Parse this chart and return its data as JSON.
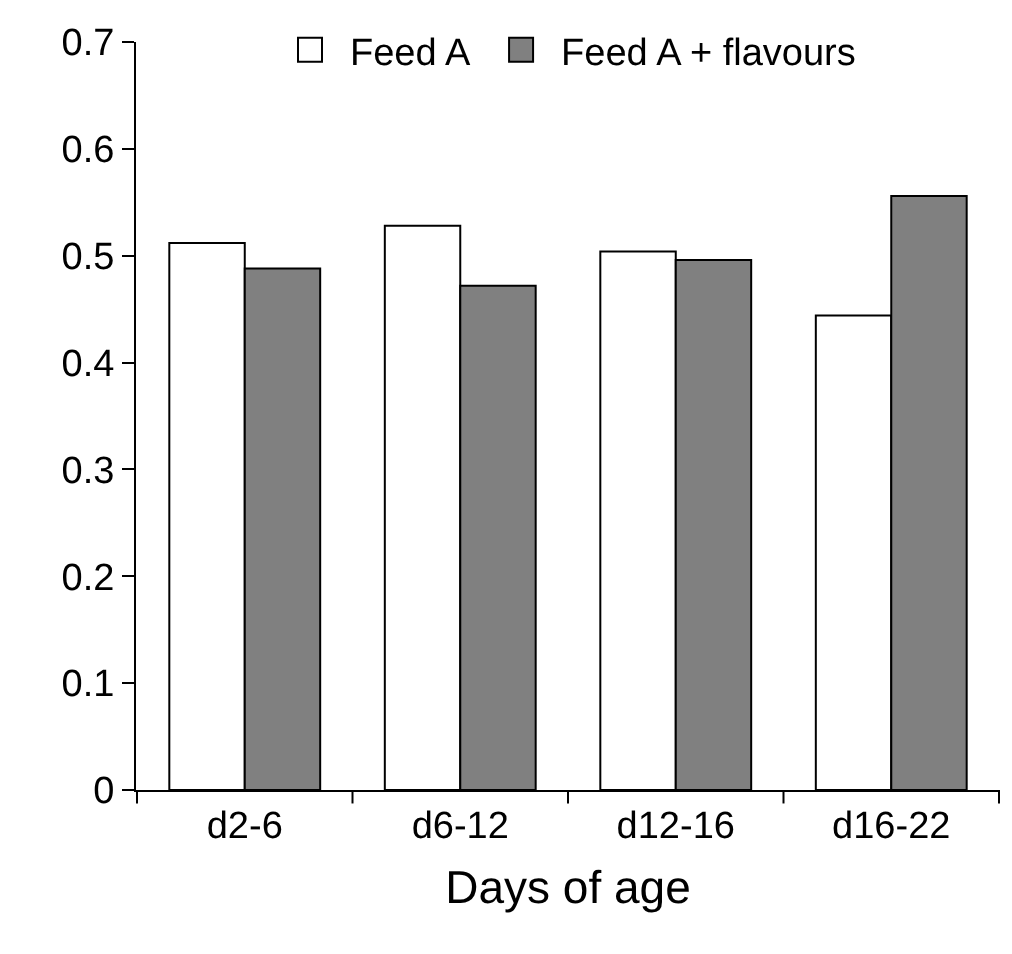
{
  "chart_data": {
    "type": "bar",
    "xlabel": "Days of age",
    "categories": [
      "d2-6",
      "d6-12",
      "d12-16",
      "d16-22"
    ],
    "series": [
      {
        "name": "Feed A",
        "color": "#ffffff",
        "values": [
          0.512,
          0.528,
          0.504,
          0.444
        ]
      },
      {
        "name": "Feed A + flavours",
        "color": "#808080",
        "values": [
          0.488,
          0.472,
          0.496,
          0.556
        ]
      }
    ],
    "ylim": [
      0,
      0.7
    ],
    "yticks": [
      {
        "value": 0,
        "label": "0"
      },
      0.1,
      0.2,
      0.3,
      0.4,
      0.5,
      0.6,
      0.7
    ],
    "grid": false,
    "legend": "top"
  }
}
